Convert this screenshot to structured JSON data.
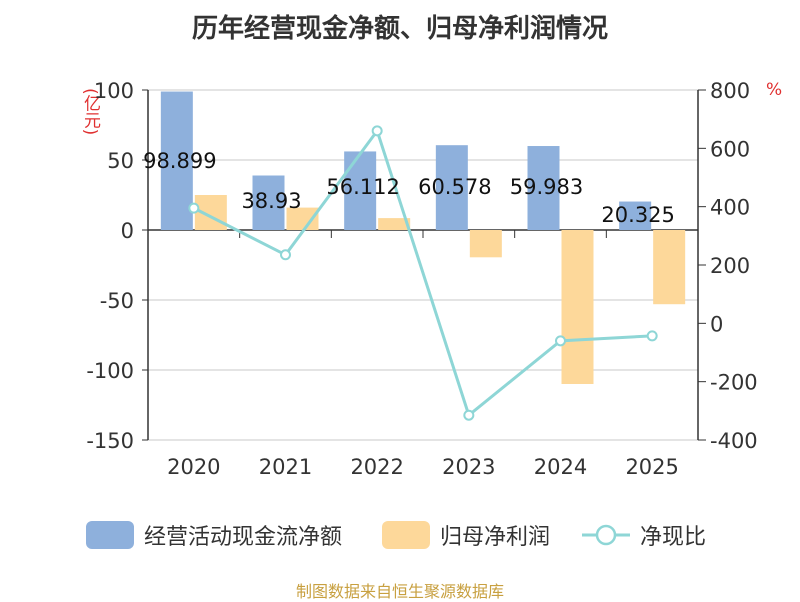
{
  "chart_data": {
    "type": "bar",
    "title": "历年经营现金净额、归母净利润情况",
    "ylabel_left": "(亿元)",
    "ylabel_right": "%",
    "categories": [
      "2020",
      "2021",
      "2022",
      "2023",
      "2024",
      "2025"
    ],
    "ylim_left": [
      -150,
      100
    ],
    "yticks_left": [
      100,
      50,
      0,
      -50,
      -100,
      -150
    ],
    "ylim_right": [
      -400,
      800
    ],
    "yticks_right": [
      800,
      600,
      400,
      200,
      0,
      -200,
      -400
    ],
    "series": [
      {
        "name": "经营活动现金流净额",
        "type": "bar",
        "axis": "left",
        "color": "#8eb0dc",
        "values": [
          98.899,
          38.93,
          56.112,
          60.578,
          59.983,
          20.325
        ],
        "labels": [
          "98.899",
          "38.93",
          "56.112",
          "60.578",
          "59.983",
          "20.325"
        ]
      },
      {
        "name": "归母净利润",
        "type": "bar",
        "axis": "left",
        "color": "#fdd89a",
        "values": [
          25,
          16,
          8.5,
          -19.5,
          -110,
          -53
        ]
      },
      {
        "name": "净现比",
        "type": "line",
        "axis": "right",
        "color": "#8ed6d6",
        "values": [
          395,
          235,
          660,
          -315,
          -60,
          -43
        ]
      }
    ],
    "grid": true,
    "legend_position": "bottom"
  },
  "source": "制图数据来自恒生聚源数据库"
}
